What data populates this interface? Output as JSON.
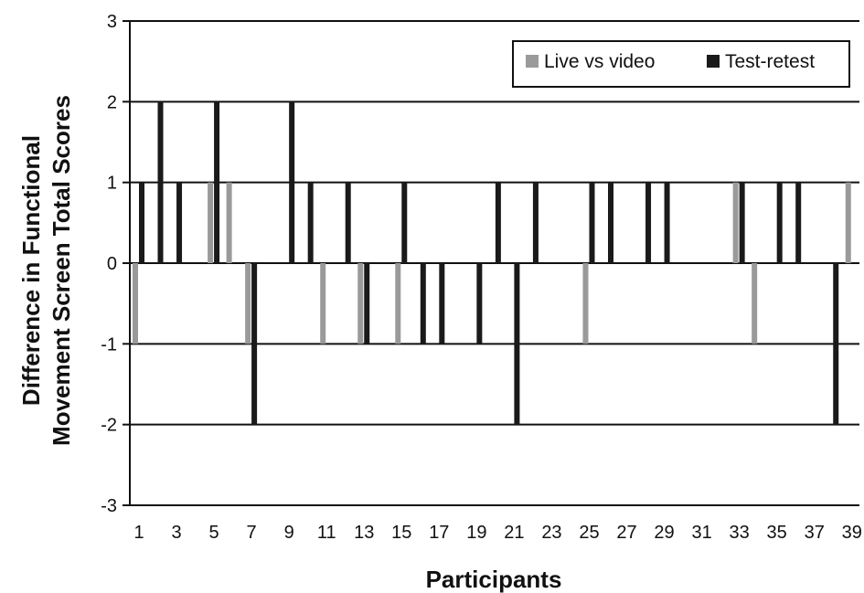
{
  "chart_data": {
    "type": "bar",
    "xlabel": "Participants",
    "ylabel_lines": [
      "Difference in Functional",
      "Movement Screen Total Scores"
    ],
    "ylim": [
      -3,
      3
    ],
    "yticks": [
      "-3",
      "-2",
      "-1",
      "0",
      "1",
      "2",
      "3"
    ],
    "xtick_labels": [
      "1",
      "3",
      "5",
      "7",
      "9",
      "11",
      "13",
      "15",
      "17",
      "19",
      "21",
      "23",
      "25",
      "27",
      "29",
      "31",
      "33",
      "35",
      "37",
      "39"
    ],
    "participants": [
      1,
      2,
      3,
      4,
      5,
      6,
      7,
      8,
      9,
      10,
      11,
      12,
      13,
      14,
      15,
      16,
      17,
      18,
      19,
      20,
      21,
      22,
      23,
      24,
      25,
      26,
      27,
      28,
      29,
      30,
      31,
      32,
      33,
      34,
      35,
      36,
      37,
      38,
      39
    ],
    "legend_position": "top-right",
    "grid": "horizontal",
    "series": [
      {
        "name": "Live vs video",
        "color": "#9a9a9a",
        "values": [
          -1,
          0,
          0,
          0,
          1,
          1,
          -1,
          0,
          0,
          0,
          -1,
          0,
          -1,
          0,
          -1,
          0,
          0,
          0,
          0,
          0,
          0,
          0,
          0,
          0,
          -1,
          0,
          0,
          0,
          0,
          0,
          0,
          0,
          1,
          -1,
          0,
          0,
          0,
          0,
          1
        ]
      },
      {
        "name": "Test-retest",
        "color": "#1a1a1a",
        "values": [
          1,
          2,
          1,
          0,
          2,
          0,
          -2,
          0,
          2,
          1,
          0,
          1,
          -1,
          0,
          1,
          -1,
          -1,
          0,
          -1,
          1,
          -2,
          1,
          0,
          0,
          1,
          1,
          0,
          1,
          1,
          0,
          0,
          0,
          1,
          0,
          1,
          1,
          0,
          -2,
          0
        ]
      }
    ]
  }
}
